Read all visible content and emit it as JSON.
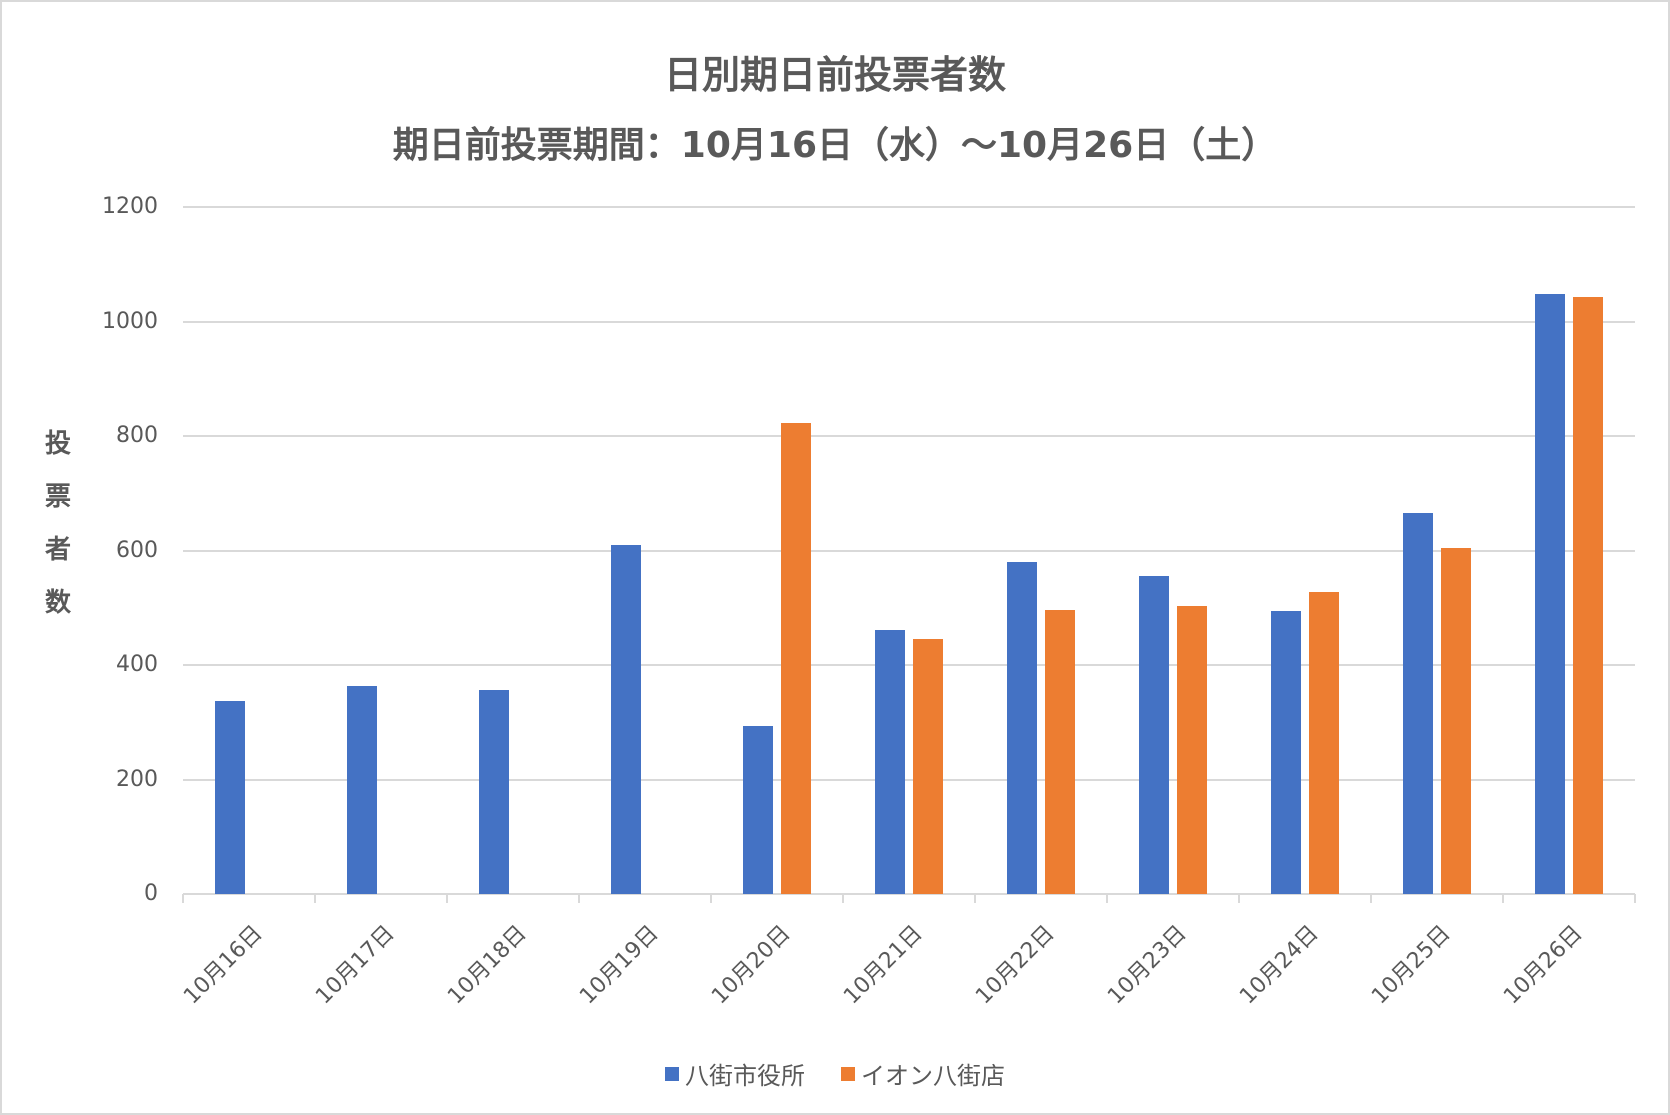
{
  "chart_data": {
    "type": "bar",
    "title": "日別期日前投票者数",
    "subtitle": "期日前投票期間：10月16日（水）～10月26日（土）",
    "xlabel": "",
    "ylabel": "投票者数",
    "ylim": [
      0,
      1200
    ],
    "yticks": [
      "0",
      "200",
      "400",
      "600",
      "800",
      "1000",
      "1200"
    ],
    "grid": true,
    "legend_position": "bottom",
    "categories": [
      "10月16日",
      "10月17日",
      "10月18日",
      "10月19日",
      "10月20日",
      "10月21日",
      "10月22日",
      "10月23日",
      "10月24日",
      "10月25日",
      "10月26日"
    ],
    "series": [
      {
        "name": "八街市役所",
        "color": "#4472c4",
        "values": [
          337,
          363,
          356,
          609,
          294,
          462,
          580,
          555,
          494,
          665,
          1048
        ]
      },
      {
        "name": "イオン八街店",
        "color": "#ed7d31",
        "values": [
          null,
          null,
          null,
          null,
          822,
          445,
          496,
          503,
          527,
          605,
          1042
        ]
      }
    ]
  },
  "ytitle_chars": [
    "投",
    "票",
    "者",
    "数"
  ]
}
